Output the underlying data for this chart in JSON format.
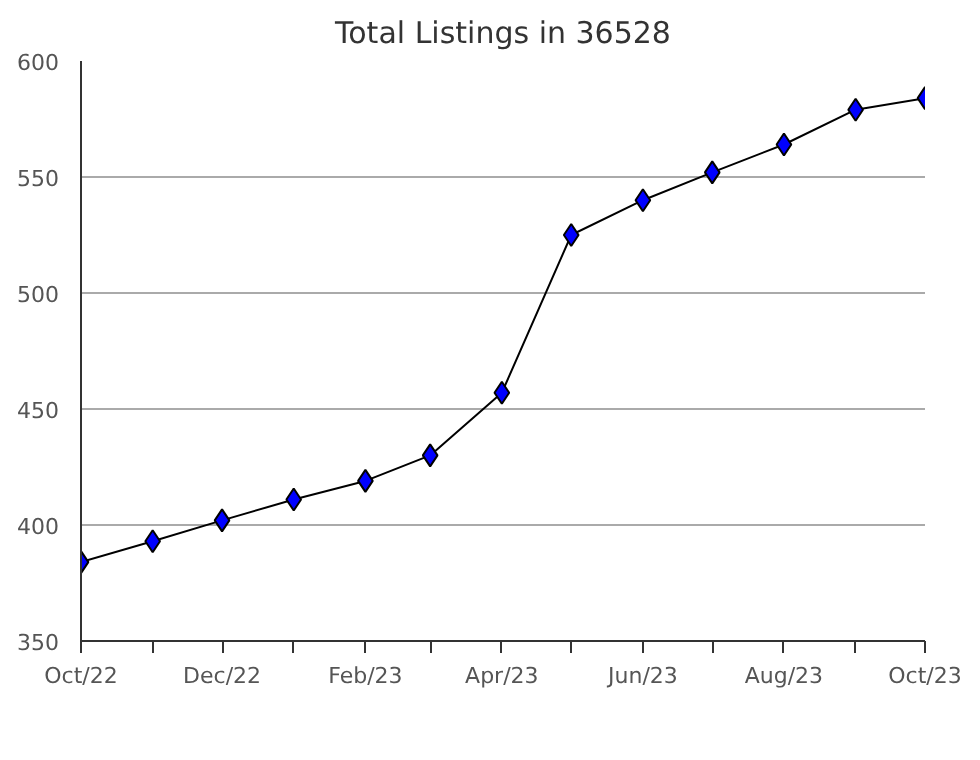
{
  "chart_data": {
    "type": "line",
    "title": "Total Listings in 36528",
    "x": [
      "2022-10",
      "2022-11",
      "2022-12",
      "2023-01",
      "2023-02",
      "2023-03",
      "2023-04",
      "2023-05",
      "2023-06",
      "2023-07",
      "2023-08",
      "2023-09",
      "2023-10"
    ],
    "series": [
      {
        "color": "#000000",
        "values": [
          384,
          393,
          402,
          411,
          419,
          430,
          457,
          525,
          540,
          552,
          564,
          579,
          584
        ]
      }
    ],
    "marker": "diamond",
    "line_style": "solid",
    "grid": "y",
    "xlim": [
      "2022-10",
      "2023-10"
    ],
    "xticks": [
      {
        "value": "2022-10",
        "label": "Oct/22"
      },
      {
        "value": "2022-11",
        "label": null
      },
      {
        "value": "2022-12",
        "label": "Dec/22"
      },
      {
        "value": "2023-01",
        "label": null
      },
      {
        "value": "2023-02",
        "label": "Feb/23"
      },
      {
        "value": "2023-03",
        "label": null
      },
      {
        "value": "2023-04",
        "label": "Apr/23"
      },
      {
        "value": "2023-05",
        "label": null
      },
      {
        "value": "2023-06",
        "label": "Jun/23"
      },
      {
        "value": "2023-07",
        "label": null
      },
      {
        "value": "2023-08",
        "label": "Aug/23"
      },
      {
        "value": "2023-09",
        "label": null
      },
      {
        "value": "2023-10",
        "label": "Oct/23"
      }
    ],
    "ylim": [
      350,
      600
    ],
    "yticks": [
      350,
      400,
      450,
      500,
      550,
      600
    ]
  }
}
